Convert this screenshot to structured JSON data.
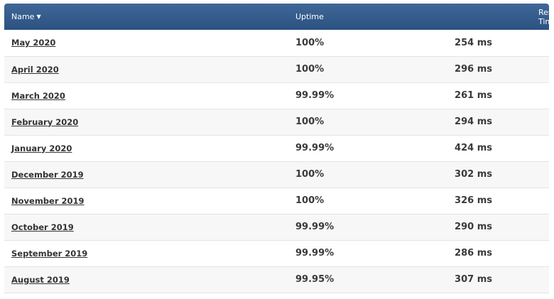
{
  "table": {
    "headers": {
      "name": "Name",
      "sort_indicator": "▼",
      "uptime": "Uptime",
      "response_time": "Response Time"
    },
    "rows": [
      {
        "name": "May 2020",
        "uptime": "100%",
        "response": "254 ms"
      },
      {
        "name": "April 2020",
        "uptime": "100%",
        "response": "296 ms"
      },
      {
        "name": "March 2020",
        "uptime": "99.99%",
        "response": "261 ms"
      },
      {
        "name": "February 2020",
        "uptime": "100%",
        "response": "294 ms"
      },
      {
        "name": "January 2020",
        "uptime": "99.99%",
        "response": "424 ms"
      },
      {
        "name": "December 2019",
        "uptime": "100%",
        "response": "302 ms"
      },
      {
        "name": "November 2019",
        "uptime": "100%",
        "response": "326 ms"
      },
      {
        "name": "October 2019",
        "uptime": "99.99%",
        "response": "290 ms"
      },
      {
        "name": "September 2019",
        "uptime": "99.99%",
        "response": "286 ms"
      },
      {
        "name": "August 2019",
        "uptime": "99.95%",
        "response": "307 ms"
      }
    ]
  },
  "colors": {
    "header_bg": "#2f5684",
    "header_text": "#ffffff",
    "row_alt": "#f7f7f7",
    "text": "#3a3a3a"
  }
}
